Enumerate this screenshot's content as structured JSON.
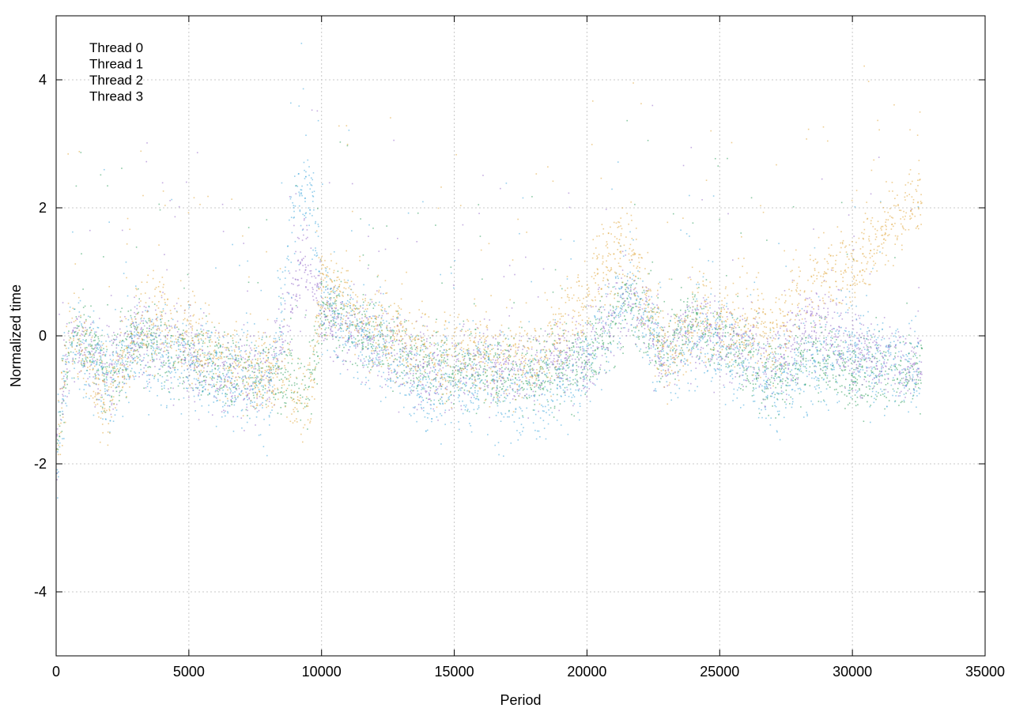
{
  "chart_data": {
    "type": "scatter",
    "title": "",
    "xlabel": "Period",
    "ylabel": "Normalized time",
    "xlim": [
      0,
      35000
    ],
    "ylim": [
      -5,
      5
    ],
    "xticks": [
      0,
      5000,
      10000,
      15000,
      20000,
      25000,
      30000,
      35000
    ],
    "yticks": [
      -4,
      -2,
      0,
      2,
      4
    ],
    "xtick_labels": [
      "0",
      "5000",
      "10000",
      "15000",
      "20000",
      "25000",
      "30000",
      "35000"
    ],
    "ytick_labels": [
      "-4",
      "-2",
      "0",
      "2",
      "4"
    ],
    "grid": true,
    "legend_position": "top-left",
    "x_extent": [
      0,
      32600
    ],
    "series": [
      {
        "name": "Thread 0",
        "color": "#2e9e5b",
        "trend": [
          [
            0,
            -1.8
          ],
          [
            300,
            -0.6
          ],
          [
            700,
            0.1
          ],
          [
            1500,
            -0.3
          ],
          [
            2000,
            -0.6
          ],
          [
            3000,
            0.0
          ],
          [
            4000,
            -0.2
          ],
          [
            5000,
            -0.3
          ],
          [
            6500,
            -0.5
          ],
          [
            8000,
            -0.7
          ],
          [
            9000,
            -0.6
          ],
          [
            9500,
            -0.8
          ],
          [
            10000,
            0.4
          ],
          [
            12000,
            0.0
          ],
          [
            14000,
            -0.5
          ],
          [
            16000,
            -0.5
          ],
          [
            18000,
            -0.6
          ],
          [
            20000,
            -0.4
          ],
          [
            21500,
            0.5
          ],
          [
            23000,
            -0.2
          ],
          [
            24000,
            0.2
          ],
          [
            26000,
            -0.3
          ],
          [
            27000,
            -0.7
          ],
          [
            28500,
            -0.3
          ],
          [
            30000,
            -0.6
          ],
          [
            32600,
            -0.5
          ]
        ],
        "spread": 0.55
      },
      {
        "name": "Thread 1",
        "color": "#9467c8",
        "trend": [
          [
            0,
            -1.7
          ],
          [
            300,
            -0.5
          ],
          [
            700,
            0.0
          ],
          [
            1500,
            -0.3
          ],
          [
            2000,
            -0.5
          ],
          [
            3000,
            0.0
          ],
          [
            4000,
            -0.1
          ],
          [
            5000,
            -0.3
          ],
          [
            6500,
            -0.6
          ],
          [
            8000,
            -0.7
          ],
          [
            9000,
            0.8
          ],
          [
            9500,
            1.0
          ],
          [
            10000,
            0.3
          ],
          [
            12000,
            -0.1
          ],
          [
            14000,
            -0.6
          ],
          [
            16000,
            -0.4
          ],
          [
            18000,
            -0.5
          ],
          [
            20000,
            -0.3
          ],
          [
            21500,
            0.6
          ],
          [
            23000,
            -0.3
          ],
          [
            24000,
            0.1
          ],
          [
            26000,
            -0.2
          ],
          [
            27000,
            -0.5
          ],
          [
            28500,
            0.2
          ],
          [
            30000,
            -0.3
          ],
          [
            32600,
            -0.4
          ]
        ],
        "spread": 0.6
      },
      {
        "name": "Thread 2",
        "color": "#3fa8dc",
        "trend": [
          [
            0,
            -1.9
          ],
          [
            300,
            -0.7
          ],
          [
            700,
            -0.1
          ],
          [
            1500,
            -0.4
          ],
          [
            2000,
            -0.7
          ],
          [
            3000,
            -0.2
          ],
          [
            4000,
            -0.3
          ],
          [
            5000,
            -0.4
          ],
          [
            6500,
            -0.7
          ],
          [
            8000,
            -0.9
          ],
          [
            9000,
            2.0
          ],
          [
            9500,
            2.5
          ],
          [
            10000,
            0.6
          ],
          [
            12000,
            -0.2
          ],
          [
            14000,
            -0.8
          ],
          [
            16000,
            -0.7
          ],
          [
            18000,
            -0.9
          ],
          [
            20000,
            -0.5
          ],
          [
            21500,
            0.8
          ],
          [
            23000,
            -0.5
          ],
          [
            24000,
            0.0
          ],
          [
            26000,
            -0.4
          ],
          [
            27000,
            -0.8
          ],
          [
            28500,
            -0.4
          ],
          [
            30000,
            -0.2
          ],
          [
            32600,
            -0.6
          ]
        ],
        "spread": 0.7
      },
      {
        "name": "Thread 3",
        "color": "#e0a53a",
        "trend": [
          [
            0,
            -1.7
          ],
          [
            300,
            -0.4
          ],
          [
            700,
            0.2
          ],
          [
            1500,
            -0.8
          ],
          [
            2000,
            -1.0
          ],
          [
            3000,
            0.1
          ],
          [
            4000,
            0.3
          ],
          [
            5000,
            -0.1
          ],
          [
            6500,
            -0.4
          ],
          [
            8000,
            -0.5
          ],
          [
            9000,
            -0.9
          ],
          [
            9500,
            -1.0
          ],
          [
            10000,
            0.8
          ],
          [
            12000,
            0.2
          ],
          [
            14000,
            -0.3
          ],
          [
            16000,
            -0.3
          ],
          [
            18000,
            -0.4
          ],
          [
            19500,
            0.3
          ],
          [
            20500,
            1.0
          ],
          [
            21500,
            1.4
          ],
          [
            23000,
            -0.4
          ],
          [
            24000,
            0.3
          ],
          [
            26000,
            0.2
          ],
          [
            27000,
            0.0
          ],
          [
            28500,
            0.9
          ],
          [
            30000,
            1.0
          ],
          [
            31500,
            1.8
          ],
          [
            32600,
            2.2
          ]
        ],
        "spread": 0.65
      }
    ]
  }
}
